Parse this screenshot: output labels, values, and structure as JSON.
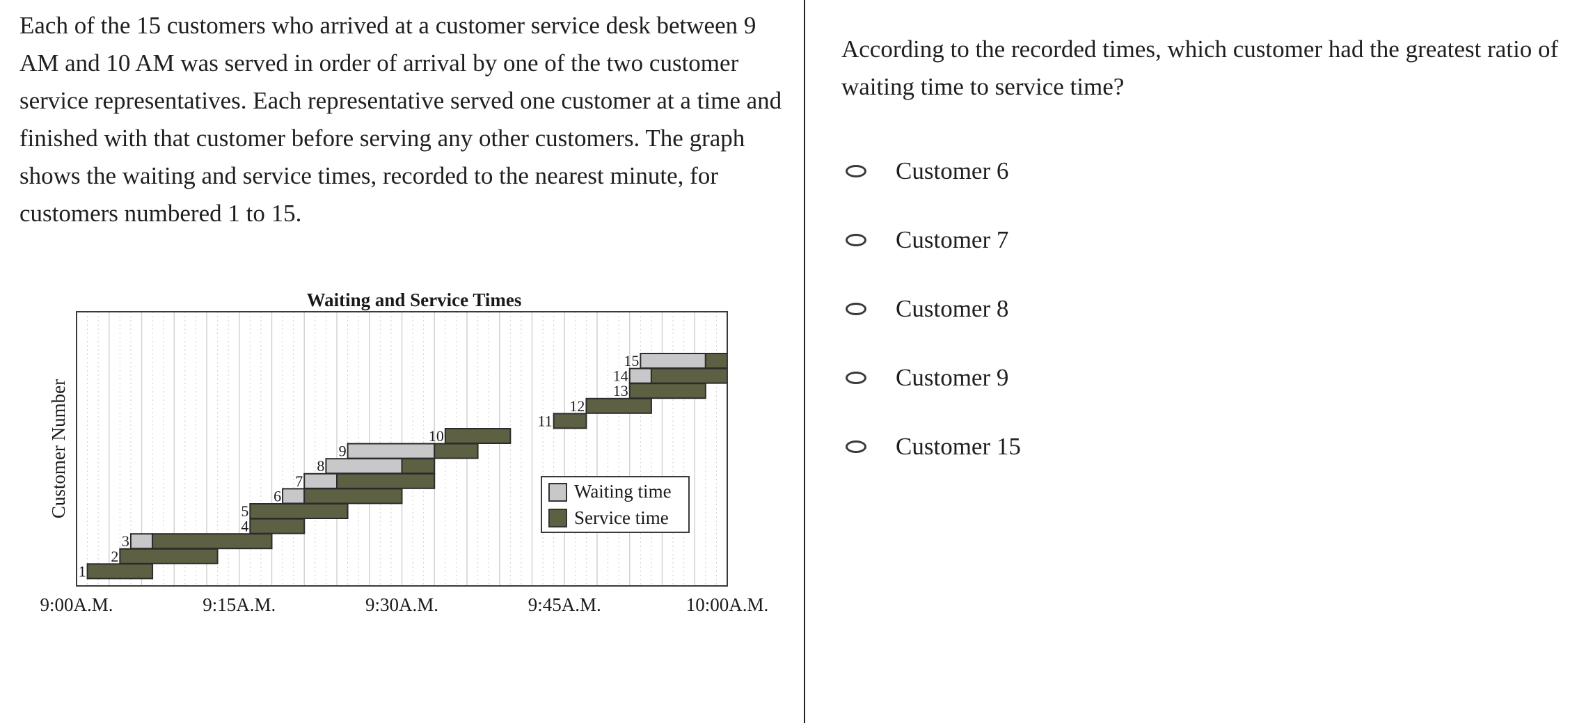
{
  "stimulus": {
    "text": "Each of the 15 customers who arrived at a customer service desk between 9 AM and 10 AM was served in order of arrival by one of the two customer service representatives. Each representative served one customer at a time and finished with that customer before serving any other customers. The graph shows the waiting and service times, recorded to the nearest minute, for customers numbered 1 to 15."
  },
  "question": {
    "text": "According to the recorded times, which customer had the greatest ratio of waiting time to service time?",
    "choices": [
      {
        "label": "Customer 6"
      },
      {
        "label": "Customer 7"
      },
      {
        "label": "Customer 8"
      },
      {
        "label": "Customer 9"
      },
      {
        "label": "Customer 15"
      }
    ]
  },
  "chart_data": {
    "type": "bar",
    "title": "Waiting and Service Times",
    "xlabel": "",
    "ylabel": "Customer Number",
    "x_unit": "minutes after 9:00 A.M.",
    "xlim": [
      0,
      60
    ],
    "ylim": [
      0,
      15
    ],
    "x_ticks": [
      {
        "value": 0,
        "label": "9:00A.M."
      },
      {
        "value": 15,
        "label": "9:15A.M."
      },
      {
        "value": 30,
        "label": "9:30A.M."
      },
      {
        "value": 45,
        "label": "9:45A.M."
      },
      {
        "value": 60,
        "label": "10:00A.M."
      }
    ],
    "grid": true,
    "legend": "lower right of center",
    "series": [
      {
        "name": "Waiting time",
        "color": "#c8c8ca"
      },
      {
        "name": "Service time",
        "color": "#5e6044"
      }
    ],
    "customers": [
      {
        "id": "1",
        "arrival": 1,
        "wait": 0,
        "service": 6
      },
      {
        "id": "2",
        "arrival": 4,
        "wait": 0,
        "service": 9
      },
      {
        "id": "3",
        "arrival": 5,
        "wait": 2,
        "service": 11
      },
      {
        "id": "4",
        "arrival": 16,
        "wait": 0,
        "service": 5
      },
      {
        "id": "5",
        "arrival": 16,
        "wait": 0,
        "service": 9
      },
      {
        "id": "6",
        "arrival": 19,
        "wait": 2,
        "service": 9
      },
      {
        "id": "7",
        "arrival": 21,
        "wait": 3,
        "service": 9
      },
      {
        "id": "8",
        "arrival": 23,
        "wait": 7,
        "service": 3
      },
      {
        "id": "9",
        "arrival": 25,
        "wait": 8,
        "service": 4
      },
      {
        "id": "10",
        "arrival": 34,
        "wait": 0,
        "service": 6
      },
      {
        "id": "11",
        "arrival": 44,
        "wait": 0,
        "service": 3
      },
      {
        "id": "12",
        "arrival": 47,
        "wait": 0,
        "service": 6
      },
      {
        "id": "13",
        "arrival": 51,
        "wait": 0,
        "service": 7
      },
      {
        "id": "14",
        "arrival": 51,
        "wait": 2,
        "service": 7
      },
      {
        "id": "15",
        "arrival": 52,
        "wait": 6,
        "service": 2
      }
    ]
  }
}
